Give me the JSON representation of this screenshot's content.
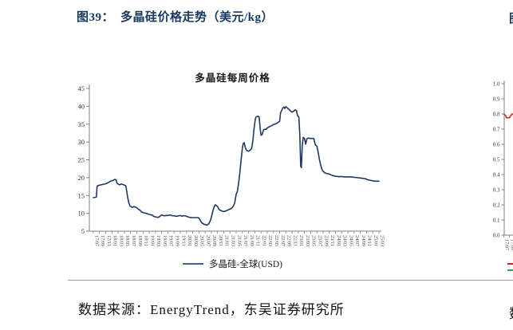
{
  "figure_title": {
    "prefix": "图39：",
    "text": "多晶硅价格走势（美元/kg）",
    "color": "#17375e"
  },
  "footer": {
    "source": "数据来源：EnergyTrend，东吴证券研究所"
  },
  "edge_fragments": {
    "top_right_title_char": "图",
    "bottom_right_source_char": "数"
  },
  "chart_data": {
    "type": "line",
    "title": "多晶硅每周价格",
    "xlabel": "",
    "ylabel": "",
    "ylim": [
      5,
      45
    ],
    "yticks": [
      5,
      10,
      15,
      20,
      25,
      30,
      35,
      40,
      45
    ],
    "grid": false,
    "x_unit": "months_since_2017_07",
    "xlim": [
      0,
      92
    ],
    "xtick_labels": [
      "17/07",
      "17/09",
      "17/11",
      "18/01",
      "18/03",
      "18/05",
      "18/07",
      "18/09",
      "18/11",
      "19/01",
      "19/03",
      "19/05",
      "19/07",
      "19/09",
      "19/11",
      "20/01",
      "20/03",
      "20/05",
      "20/07",
      "20/09",
      "20/11",
      "21/01",
      "21/03",
      "21/05",
      "21/07",
      "21/09",
      "21/11",
      "22/01",
      "22/03",
      "22/05",
      "22/07",
      "22/09",
      "22/11",
      "23/01",
      "23/03",
      "23/05",
      "23/07",
      "23/09",
      "23/11",
      "24/01",
      "24/03",
      "24/05",
      "24/07",
      "24/09",
      "24/11",
      "25/01",
      "25/03"
    ],
    "legend": {
      "label": "多晶硅-全球(USD)",
      "position": "bottom",
      "swatch_color": "#41618f"
    },
    "series": [
      {
        "name": "多晶硅-全球(USD)",
        "color": "#1f3864",
        "points": [
          [
            0,
            14.4
          ],
          [
            0.7,
            14.5
          ],
          [
            1.0,
            14.6
          ],
          [
            1.2,
            17.6
          ],
          [
            1.6,
            17.8
          ],
          [
            2,
            17.9
          ],
          [
            3,
            18.1
          ],
          [
            4,
            18.3
          ],
          [
            4.5,
            18.5
          ],
          [
            5,
            18.7
          ],
          [
            5.5,
            19.0
          ],
          [
            6,
            19.1
          ],
          [
            6.5,
            19.3
          ],
          [
            6.9,
            19.5
          ],
          [
            7.3,
            19.4
          ],
          [
            7.6,
            18.5
          ],
          [
            8,
            18.2
          ],
          [
            8.4,
            18.0
          ],
          [
            9,
            18.2
          ],
          [
            9.5,
            18.1
          ],
          [
            10,
            17.9
          ],
          [
            10.4,
            17.8
          ],
          [
            10.7,
            16.5
          ],
          [
            11,
            14.8
          ],
          [
            11.4,
            13.0
          ],
          [
            11.8,
            12.1
          ],
          [
            12.2,
            11.8
          ],
          [
            12.6,
            11.7
          ],
          [
            13,
            11.9
          ],
          [
            13.4,
            11.8
          ],
          [
            14,
            11.6
          ],
          [
            14.4,
            11.2
          ],
          [
            15,
            10.9
          ],
          [
            15.5,
            10.4
          ],
          [
            16,
            10.2
          ],
          [
            16.5,
            10.1
          ],
          [
            17,
            10.0
          ],
          [
            18,
            9.7
          ],
          [
            18.5,
            9.6
          ],
          [
            19,
            9.5
          ],
          [
            19.5,
            9.1
          ],
          [
            20,
            9.0
          ],
          [
            20.5,
            8.9
          ],
          [
            21,
            8.9
          ],
          [
            21.5,
            9.2
          ],
          [
            22,
            9.6
          ],
          [
            22.4,
            9.4
          ],
          [
            23,
            9.3
          ],
          [
            23.5,
            9.4
          ],
          [
            24,
            9.4
          ],
          [
            24.5,
            9.5
          ],
          [
            25,
            9.5
          ],
          [
            25.5,
            9.3
          ],
          [
            26,
            9.3
          ],
          [
            26.5,
            9.2
          ],
          [
            27,
            9.2
          ],
          [
            27.5,
            9.3
          ],
          [
            28,
            9.4
          ],
          [
            28.5,
            9.2
          ],
          [
            29,
            9.3
          ],
          [
            29.5,
            9.3
          ],
          [
            30,
            9.2
          ],
          [
            30.5,
            9.0
          ],
          [
            31,
            8.9
          ],
          [
            31.5,
            8.8
          ],
          [
            32,
            8.8
          ],
          [
            32.5,
            8.8
          ],
          [
            33,
            8.8
          ],
          [
            33.5,
            8.8
          ],
          [
            34,
            8.7
          ],
          [
            34.4,
            8.1
          ],
          [
            34.8,
            7.5
          ],
          [
            35.3,
            7.1
          ],
          [
            35.8,
            6.9
          ],
          [
            36.2,
            6.8
          ],
          [
            36.6,
            6.7
          ],
          [
            37,
            6.9
          ],
          [
            37.4,
            7.4
          ],
          [
            37.8,
            8.2
          ],
          [
            38.2,
            9.6
          ],
          [
            38.6,
            11.0
          ],
          [
            39,
            12.0
          ],
          [
            39.3,
            12.4
          ],
          [
            39.6,
            12.2
          ],
          [
            40,
            11.9
          ],
          [
            40.4,
            11.2
          ],
          [
            40.8,
            10.9
          ],
          [
            41.2,
            10.7
          ],
          [
            42,
            10.5
          ],
          [
            42.5,
            10.6
          ],
          [
            43,
            10.8
          ],
          [
            43.5,
            11.0
          ],
          [
            44,
            11.2
          ],
          [
            44.5,
            11.4
          ],
          [
            45,
            11.9
          ],
          [
            45.5,
            12.8
          ],
          [
            46,
            15.3
          ],
          [
            46.4,
            16.2
          ],
          [
            46.8,
            18.5
          ],
          [
            47.2,
            21.5
          ],
          [
            47.6,
            25.0
          ],
          [
            48,
            28.3
          ],
          [
            48.3,
            29.6
          ],
          [
            48.6,
            29.8
          ],
          [
            49,
            28.3
          ],
          [
            49.4,
            27.6
          ],
          [
            50,
            27.4
          ],
          [
            50.5,
            27.7
          ],
          [
            51,
            28.2
          ],
          [
            51.4,
            30.5
          ],
          [
            51.8,
            34.0
          ],
          [
            52.2,
            36.6
          ],
          [
            52.5,
            37.1
          ],
          [
            53,
            37.2
          ],
          [
            53.4,
            37.0
          ],
          [
            53.7,
            34.0
          ],
          [
            54,
            31.9
          ],
          [
            54.4,
            32.1
          ],
          [
            54.8,
            33.4
          ],
          [
            55.2,
            33.6
          ],
          [
            55.6,
            33.5
          ],
          [
            56,
            33.9
          ],
          [
            56.5,
            34.2
          ],
          [
            57,
            34.4
          ],
          [
            57.5,
            34.6
          ],
          [
            58,
            34.9
          ],
          [
            58.5,
            35.0
          ],
          [
            59,
            35.2
          ],
          [
            59.5,
            35.5
          ],
          [
            60,
            35.8
          ],
          [
            60.3,
            38.2
          ],
          [
            60.7,
            38.9
          ],
          [
            61,
            39.5
          ],
          [
            61.4,
            39.8
          ],
          [
            61.7,
            39.4
          ],
          [
            62,
            39.9
          ],
          [
            62.4,
            39.6
          ],
          [
            62.8,
            39.3
          ],
          [
            63.2,
            39.0
          ],
          [
            63.6,
            38.6
          ],
          [
            64,
            38.4
          ],
          [
            64.5,
            38.6
          ],
          [
            65,
            39.0
          ],
          [
            65.4,
            38.8
          ],
          [
            65.8,
            37.3
          ],
          [
            66.2,
            37.0
          ],
          [
            66.5,
            32.0
          ],
          [
            66.8,
            23.2
          ],
          [
            67,
            22.8
          ],
          [
            67.3,
            29.0
          ],
          [
            67.6,
            31.3
          ],
          [
            68,
            31.0
          ],
          [
            68.4,
            29.4
          ],
          [
            68.8,
            30.9
          ],
          [
            69.2,
            31.1
          ],
          [
            70,
            31.0
          ],
          [
            70.5,
            31.0
          ],
          [
            71,
            31.0
          ],
          [
            71.5,
            29.2
          ],
          [
            72,
            28.8
          ],
          [
            72.4,
            27.2
          ],
          [
            72.8,
            25.2
          ],
          [
            73.2,
            23.6
          ],
          [
            73.6,
            22.4
          ],
          [
            74,
            21.8
          ],
          [
            74.5,
            21.4
          ],
          [
            75,
            21.2
          ],
          [
            76,
            21.0
          ],
          [
            77,
            20.6
          ],
          [
            78,
            20.4
          ],
          [
            79,
            20.3
          ],
          [
            80,
            20.3
          ],
          [
            81,
            20.2
          ],
          [
            82,
            20.2
          ],
          [
            83,
            20.2
          ],
          [
            84,
            20.1
          ],
          [
            85,
            20.0
          ],
          [
            86,
            19.9
          ],
          [
            87,
            19.8
          ],
          [
            88,
            19.6
          ],
          [
            88.4,
            19.4
          ],
          [
            89,
            19.3
          ],
          [
            90,
            19.1
          ],
          [
            91,
            19.0
          ],
          [
            92,
            19.0
          ]
        ]
      }
    ]
  },
  "right_chart_fragment": {
    "type": "line",
    "ylim": [
      0,
      1
    ],
    "ytick_labels": [
      "1.0",
      "0.9",
      "0.8",
      "0.7",
      "0.6",
      "0.5",
      "0.4",
      "0.3",
      "0.2",
      "0.1",
      "0.0"
    ],
    "xtick_labels": [
      "17/07",
      "17/09"
    ],
    "series": [
      {
        "name": "red-series",
        "color": "#cc2222",
        "points": [
          [
            0,
            0.8
          ],
          [
            0.6,
            0.79
          ],
          [
            1,
            0.775
          ],
          [
            2,
            0.775
          ],
          [
            2.5,
            0.79
          ],
          [
            3,
            0.8
          ],
          [
            3.4,
            0.8
          ]
        ]
      }
    ],
    "legend_swatches": [
      "#cc2222",
      "#2f9e5f"
    ]
  }
}
